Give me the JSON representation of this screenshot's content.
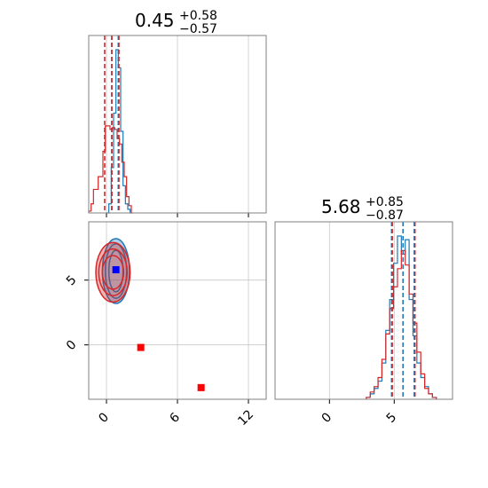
{
  "chart_data": [
    {
      "panel": "top-left",
      "type": "histogram",
      "title": {
        "value": "0.45",
        "plus": "+0.58",
        "minus": "−0.57"
      },
      "xlim": [
        -1.5,
        13.5
      ],
      "grid": true,
      "xticks": [
        0,
        6,
        12
      ],
      "tick_labels_shown": false,
      "series": [
        {
          "name": "blue",
          "color": "#1f77b4",
          "bins_x": [
            0.1,
            0.3,
            0.5,
            0.7,
            0.9,
            1.1,
            1.3,
            1.5,
            1.7,
            1.9,
            2.1
          ],
          "counts": [
            0,
            0.05,
            0.25,
            0.55,
            0.9,
            0.8,
            0.45,
            0.15,
            0.05,
            0.02,
            0
          ]
        },
        {
          "name": "red",
          "color": "#d62728",
          "bins_x": [
            -1.4,
            -1.2,
            -1.0,
            -0.8,
            -0.6,
            -0.4,
            -0.2,
            0,
            0.2,
            0.4,
            0.6,
            0.8,
            1.0,
            1.2,
            1.4,
            1.6,
            1.8,
            2.0
          ],
          "counts": [
            0.01,
            0.05,
            0.13,
            0.13,
            0.2,
            0.2,
            0.34,
            0.48,
            0.48,
            0.46,
            0.47,
            0.46,
            0.41,
            0.38,
            0.28,
            0.2,
            0.09,
            0.04
          ]
        }
      ],
      "quantile_lines": [
        {
          "x": -0.15,
          "color": "#d62728"
        },
        {
          "x": 0.45,
          "color": "#1f77b4"
        },
        {
          "x": 1.0,
          "color": "#1f77b4"
        },
        {
          "x": 0.45,
          "color": "#d62728"
        },
        {
          "x": 1.05,
          "color": "#d62728"
        }
      ]
    },
    {
      "panel": "bottom-left",
      "type": "scatter",
      "xlim": [
        -1.5,
        13.5
      ],
      "ylim": [
        -4.2,
        9.5
      ],
      "grid": true,
      "xticks": [
        0,
        6,
        12
      ],
      "yticks": [
        0,
        5
      ],
      "contours": [
        {
          "name": "blue",
          "color": "#1f77b4",
          "center": [
            0.8,
            5.7
          ],
          "radii": [
            [
              0.6,
              1.6
            ],
            [
              0.9,
              2.1
            ],
            [
              1.15,
              2.5
            ]
          ]
        },
        {
          "name": "red",
          "color": "#d62728",
          "center": [
            0.55,
            5.6
          ],
          "radii": [
            [
              0.9,
              1.3
            ],
            [
              1.2,
              1.8
            ],
            [
              1.45,
              2.3
            ]
          ]
        }
      ],
      "markers": [
        {
          "x": 0.8,
          "y": 5.8,
          "color": "#0000ff"
        },
        {
          "x": 2.9,
          "y": -0.2,
          "color": "#ff0000"
        },
        {
          "x": 8.0,
          "y": -3.3,
          "color": "#ff0000"
        }
      ]
    },
    {
      "panel": "bottom-right",
      "type": "histogram",
      "title": {
        "value": "5.68",
        "plus": "+0.85",
        "minus": "−0.87"
      },
      "xlim": [
        -4.2,
        9.5
      ],
      "grid": true,
      "xticks": [
        0,
        5
      ],
      "series": [
        {
          "name": "blue",
          "color": "#1f77b4",
          "bins_x": [
            3.0,
            3.3,
            3.6,
            3.9,
            4.2,
            4.5,
            4.8,
            5.1,
            5.4,
            5.7,
            6.0,
            6.3,
            6.6,
            6.9,
            7.2,
            7.5,
            7.8,
            8.1
          ],
          "counts": [
            0.01,
            0.03,
            0.06,
            0.1,
            0.2,
            0.38,
            0.55,
            0.75,
            0.9,
            0.8,
            0.88,
            0.55,
            0.35,
            0.2,
            0.12,
            0.07,
            0.03,
            0.01
          ]
        },
        {
          "name": "red",
          "color": "#d62728",
          "bins_x": [
            3.0,
            3.3,
            3.6,
            3.9,
            4.2,
            4.5,
            4.8,
            5.1,
            5.4,
            5.7,
            6.0,
            6.3,
            6.6,
            6.9,
            7.2,
            7.5,
            7.8,
            8.1
          ],
          "counts": [
            0.01,
            0.04,
            0.07,
            0.12,
            0.22,
            0.36,
            0.5,
            0.62,
            0.72,
            0.82,
            0.74,
            0.58,
            0.42,
            0.26,
            0.14,
            0.06,
            0.03,
            0.01
          ]
        }
      ],
      "quantile_lines": [
        {
          "x": 4.8,
          "color": "#1f77b4"
        },
        {
          "x": 5.68,
          "color": "#1f77b4"
        },
        {
          "x": 6.55,
          "color": "#1f77b4"
        },
        {
          "x": 4.85,
          "color": "#d62728"
        },
        {
          "x": 6.6,
          "color": "#d62728"
        }
      ]
    }
  ]
}
